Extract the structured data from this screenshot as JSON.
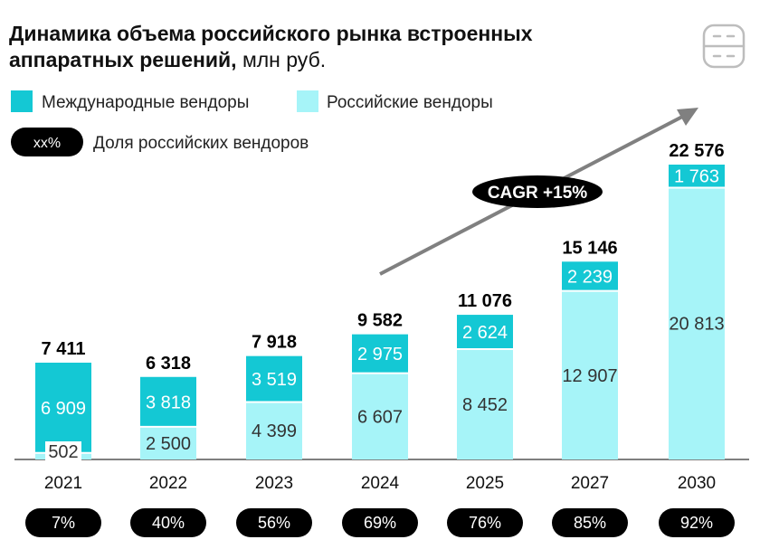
{
  "title_bold": "Динамика объема российского рынка встроенных аппаратных решений,",
  "title_line1": "Динамика объема российского рынка встроенных",
  "title_line2_bold": "аппаратных решений,",
  "title_unit": " млн руб.",
  "legend": {
    "international": "Международные вендоры",
    "russian": "Российские вендоры",
    "share_pill": "xx%",
    "share_text": "Доля российских вендоров"
  },
  "cagr_label": "CAGR +15%",
  "icon_name": "server-icon",
  "colors": {
    "international": "#14c8d4",
    "russian": "#a6f4f8",
    "pill": "#000000",
    "arrow": "#808080"
  },
  "chart_data": {
    "type": "bar",
    "stacked": true,
    "title": "Динамика объема российского рынка встроенных аппаратных решений, млн руб.",
    "categories": [
      "2021",
      "2022",
      "2023",
      "2024",
      "2025",
      "2027",
      "2030"
    ],
    "series": [
      {
        "name": "Российские вендоры",
        "values": [
          502,
          2500,
          4399,
          6607,
          8452,
          12907,
          20813
        ],
        "labels": [
          "502",
          "2 500",
          "4 399",
          "6 607",
          "8 452",
          "12 907",
          "20 813"
        ]
      },
      {
        "name": "Международные вендоры",
        "values": [
          6909,
          3818,
          3519,
          2975,
          2624,
          2239,
          1763
        ],
        "labels": [
          "6 909",
          "3 818",
          "3 519",
          "2 975",
          "2 624",
          "2 239",
          "1 763"
        ]
      }
    ],
    "totals": [
      7411,
      6318,
      7918,
      9582,
      11076,
      15146,
      22576
    ],
    "total_labels": [
      "7 411",
      "6 318",
      "7 918",
      "9 582",
      "11 076",
      "15 146",
      "22 576"
    ],
    "russian_share": [
      "7%",
      "40%",
      "56%",
      "69%",
      "76%",
      "85%",
      "92%"
    ],
    "ylim": [
      0,
      22576
    ],
    "legend_position": "top-left",
    "grid": false
  }
}
